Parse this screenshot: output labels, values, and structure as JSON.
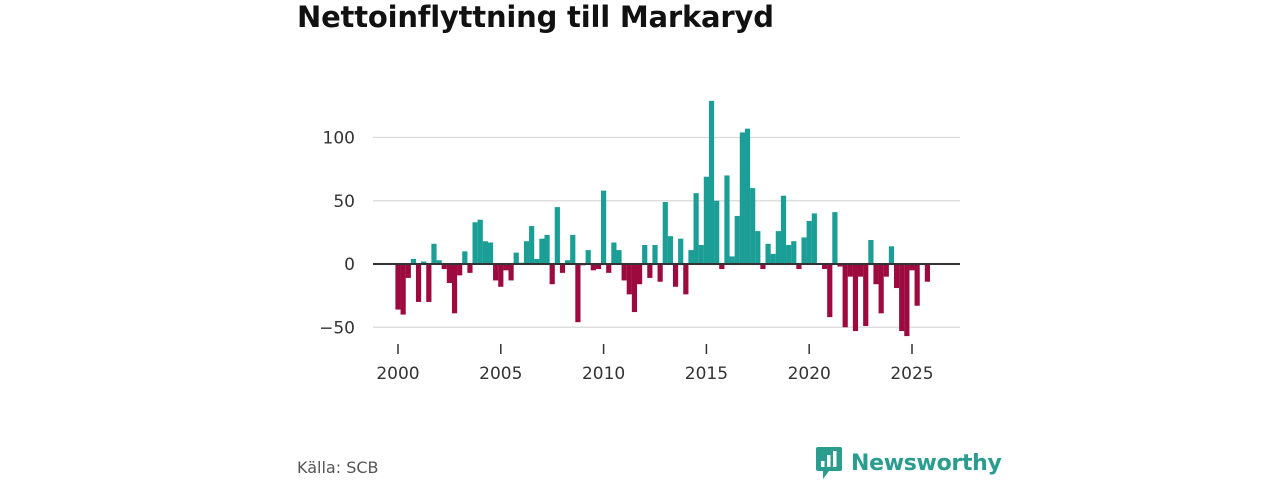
{
  "chart_data": {
    "type": "bar",
    "title": "Nettoinflyttning till Markaryd",
    "source": "Källa: SCB",
    "brand": "Newsworthy",
    "y_ticks": [
      {
        "value": 100,
        "label": "100"
      },
      {
        "value": 50,
        "label": "50"
      },
      {
        "value": 0,
        "label": "0"
      },
      {
        "value": -50,
        "label": "−50"
      }
    ],
    "x_ticks": [
      {
        "value": 2000,
        "label": "2000"
      },
      {
        "value": 2005,
        "label": "2005"
      },
      {
        "value": 2010,
        "label": "2010"
      },
      {
        "value": 2015,
        "label": "2015"
      },
      {
        "value": 2020,
        "label": "2020"
      },
      {
        "value": 2025,
        "label": "2025"
      }
    ],
    "x_range": [
      1998.2,
      2027.3
    ],
    "ylim": [
      -59,
      136
    ],
    "colors": {
      "positive": "#1a9e96",
      "negative": "#9c0a3e",
      "grid": "#d9d9d9",
      "zero": "#333333"
    },
    "values": [
      -36,
      -40,
      -11,
      4,
      -30,
      2,
      -30,
      16,
      3,
      -4,
      -15,
      -39,
      -9,
      10,
      -7,
      33,
      35,
      18,
      17,
      -13,
      -18,
      -5,
      -13,
      9,
      1,
      18,
      30,
      4,
      20,
      23,
      -16,
      45,
      -7,
      3,
      23,
      -46,
      -1,
      11,
      -5,
      -4,
      58,
      -7,
      17,
      11,
      -13,
      -24,
      -38,
      -16,
      15,
      -11,
      15,
      -14,
      49,
      22,
      -18,
      20,
      -24,
      11,
      56,
      15,
      69,
      129,
      50,
      -4,
      70,
      6,
      38,
      104,
      107,
      60,
      26,
      -4,
      16,
      8,
      26,
      54,
      15,
      18,
      -4,
      21,
      34,
      40,
      0,
      -4,
      -42,
      41,
      -2,
      -50,
      -10,
      -53,
      -10,
      -49,
      19,
      -16,
      -39,
      -10,
      14,
      -19,
      -53,
      -57,
      -5,
      -33,
      0,
      -14
    ]
  }
}
